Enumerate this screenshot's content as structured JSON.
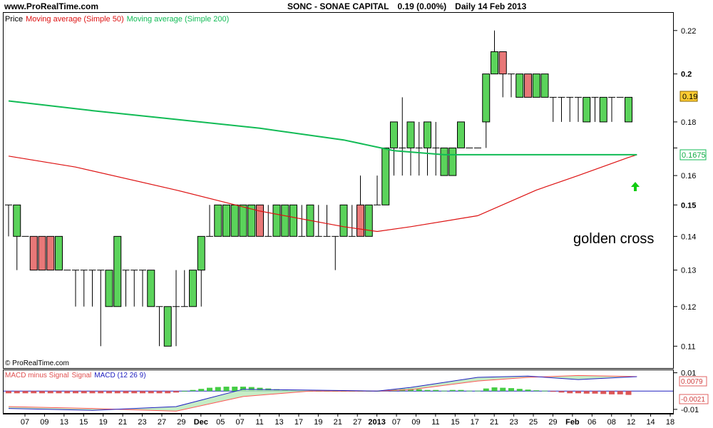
{
  "header": {
    "site": "www.ProRealTime.com",
    "symbol": "SONC - SONAE CAPITAL",
    "quote": "0.19 (0.00%)",
    "period": "Daily",
    "date": "14 Feb 2013"
  },
  "legend": {
    "price": "Price",
    "ma50": "Moving average (Simple 50)",
    "ma200": "Moving average (Simple 200)"
  },
  "copyright": "© ProRealTime.com",
  "annotation": {
    "text": "golden cross"
  },
  "last_price_tag": "0.19",
  "ma200_tag": "0.1675",
  "macd_legend": {
    "hist": "MACD minus Signal",
    "signal": "Signal",
    "macd": "MACD (12 26 9)"
  },
  "macd_tags": {
    "a": "0.0079",
    "b": "-0.0021"
  },
  "colors": {
    "up": "#5bd35b",
    "down": "#e87878",
    "ma50": "#dd1111",
    "ma200": "#11bb55",
    "macd": "#2020c0",
    "signal": "#ff5555",
    "arrow": "#11cc11"
  },
  "chart_data": [
    {
      "type": "candlestick",
      "title": "SONC - SONAE CAPITAL",
      "ylim": [
        0.105,
        0.228
      ],
      "yticks": [
        0.11,
        0.12,
        0.13,
        0.14,
        0.15,
        0.16,
        0.17,
        0.18,
        0.2,
        0.22
      ],
      "y_scale": "log",
      "ytick_labels": [
        "0.11",
        "0.12",
        "0.13",
        "0.14",
        "0.15",
        "0.16",
        "",
        "0.18",
        "0.2",
        "0.22"
      ],
      "x_labels": [
        "07",
        "09",
        "13",
        "15",
        "19",
        "21",
        "23",
        "27",
        "29",
        "Dec",
        "05",
        "07",
        "11",
        "13",
        "17",
        "19",
        "21",
        "27",
        "2013",
        "07",
        "09",
        "11",
        "15",
        "17",
        "21",
        "23",
        "25",
        "29",
        "Feb",
        "06",
        "08",
        "12",
        "14",
        "18"
      ],
      "candles": [
        {
          "o": 0.15,
          "h": 0.15,
          "l": 0.14,
          "c": 0.15
        },
        {
          "o": 0.14,
          "h": 0.15,
          "l": 0.13,
          "c": 0.15
        },
        {
          "o": 0.14,
          "h": 0.14,
          "l": 0.14,
          "c": 0.14
        },
        {
          "o": 0.14,
          "h": 0.14,
          "l": 0.13,
          "c": 0.13
        },
        {
          "o": 0.14,
          "h": 0.14,
          "l": 0.13,
          "c": 0.13
        },
        {
          "o": 0.14,
          "h": 0.14,
          "l": 0.13,
          "c": 0.13
        },
        {
          "o": 0.13,
          "h": 0.14,
          "l": 0.13,
          "c": 0.14
        },
        {
          "o": 0.13,
          "h": 0.13,
          "l": 0.13,
          "c": 0.13
        },
        {
          "o": 0.13,
          "h": 0.13,
          "l": 0.12,
          "c": 0.13
        },
        {
          "o": 0.13,
          "h": 0.13,
          "l": 0.12,
          "c": 0.13
        },
        {
          "o": 0.13,
          "h": 0.13,
          "l": 0.12,
          "c": 0.13
        },
        {
          "o": 0.13,
          "h": 0.13,
          "l": 0.11,
          "c": 0.13
        },
        {
          "o": 0.12,
          "h": 0.13,
          "l": 0.12,
          "c": 0.13
        },
        {
          "o": 0.12,
          "h": 0.14,
          "l": 0.12,
          "c": 0.14
        },
        {
          "o": 0.13,
          "h": 0.13,
          "l": 0.12,
          "c": 0.13
        },
        {
          "o": 0.13,
          "h": 0.13,
          "l": 0.12,
          "c": 0.13
        },
        {
          "o": 0.13,
          "h": 0.13,
          "l": 0.12,
          "c": 0.13
        },
        {
          "o": 0.12,
          "h": 0.13,
          "l": 0.12,
          "c": 0.13
        },
        {
          "o": 0.12,
          "h": 0.12,
          "l": 0.11,
          "c": 0.12
        },
        {
          "o": 0.11,
          "h": 0.12,
          "l": 0.11,
          "c": 0.12
        },
        {
          "o": 0.12,
          "h": 0.13,
          "l": 0.11,
          "c": 0.12
        },
        {
          "o": 0.12,
          "h": 0.13,
          "l": 0.12,
          "c": 0.12
        },
        {
          "o": 0.12,
          "h": 0.13,
          "l": 0.12,
          "c": 0.13
        },
        {
          "o": 0.13,
          "h": 0.14,
          "l": 0.12,
          "c": 0.14
        },
        {
          "o": 0.14,
          "h": 0.15,
          "l": 0.14,
          "c": 0.14
        },
        {
          "o": 0.14,
          "h": 0.15,
          "l": 0.14,
          "c": 0.15
        },
        {
          "o": 0.14,
          "h": 0.15,
          "l": 0.14,
          "c": 0.15
        },
        {
          "o": 0.14,
          "h": 0.15,
          "l": 0.14,
          "c": 0.15
        },
        {
          "o": 0.14,
          "h": 0.15,
          "l": 0.14,
          "c": 0.15
        },
        {
          "o": 0.14,
          "h": 0.15,
          "l": 0.14,
          "c": 0.15
        },
        {
          "o": 0.15,
          "h": 0.15,
          "l": 0.14,
          "c": 0.14
        },
        {
          "o": 0.14,
          "h": 0.15,
          "l": 0.14,
          "c": 0.14
        },
        {
          "o": 0.14,
          "h": 0.15,
          "l": 0.14,
          "c": 0.15
        },
        {
          "o": 0.14,
          "h": 0.15,
          "l": 0.14,
          "c": 0.15
        },
        {
          "o": 0.14,
          "h": 0.15,
          "l": 0.14,
          "c": 0.15
        },
        {
          "o": 0.14,
          "h": 0.15,
          "l": 0.14,
          "c": 0.14
        },
        {
          "o": 0.14,
          "h": 0.15,
          "l": 0.14,
          "c": 0.15
        },
        {
          "o": 0.14,
          "h": 0.15,
          "l": 0.14,
          "c": 0.14
        },
        {
          "o": 0.14,
          "h": 0.15,
          "l": 0.14,
          "c": 0.14
        },
        {
          "o": 0.14,
          "h": 0.14,
          "l": 0.13,
          "c": 0.14
        },
        {
          "o": 0.14,
          "h": 0.15,
          "l": 0.14,
          "c": 0.15
        },
        {
          "o": 0.14,
          "h": 0.15,
          "l": 0.14,
          "c": 0.14
        },
        {
          "o": 0.15,
          "h": 0.16,
          "l": 0.14,
          "c": 0.14
        },
        {
          "o": 0.14,
          "h": 0.15,
          "l": 0.14,
          "c": 0.15
        },
        {
          "o": 0.15,
          "h": 0.16,
          "l": 0.15,
          "c": 0.15
        },
        {
          "o": 0.15,
          "h": 0.17,
          "l": 0.15,
          "c": 0.17
        },
        {
          "o": 0.17,
          "h": 0.18,
          "l": 0.16,
          "c": 0.18
        },
        {
          "o": 0.17,
          "h": 0.19,
          "l": 0.16,
          "c": 0.17
        },
        {
          "o": 0.17,
          "h": 0.18,
          "l": 0.16,
          "c": 0.18
        },
        {
          "o": 0.17,
          "h": 0.18,
          "l": 0.16,
          "c": 0.17
        },
        {
          "o": 0.17,
          "h": 0.18,
          "l": 0.16,
          "c": 0.18
        },
        {
          "o": 0.17,
          "h": 0.18,
          "l": 0.16,
          "c": 0.17
        },
        {
          "o": 0.16,
          "h": 0.17,
          "l": 0.16,
          "c": 0.17
        },
        {
          "o": 0.16,
          "h": 0.17,
          "l": 0.16,
          "c": 0.17
        },
        {
          "o": 0.17,
          "h": 0.18,
          "l": 0.17,
          "c": 0.18
        },
        {
          "o": 0.17,
          "h": 0.17,
          "l": 0.17,
          "c": 0.17
        },
        {
          "o": 0.17,
          "h": 0.17,
          "l": 0.17,
          "c": 0.17
        },
        {
          "o": 0.18,
          "h": 0.2,
          "l": 0.17,
          "c": 0.2
        },
        {
          "o": 0.2,
          "h": 0.22,
          "l": 0.2,
          "c": 0.21
        },
        {
          "o": 0.21,
          "h": 0.21,
          "l": 0.19,
          "c": 0.2
        },
        {
          "o": 0.2,
          "h": 0.2,
          "l": 0.19,
          "c": 0.2
        },
        {
          "o": 0.19,
          "h": 0.2,
          "l": 0.19,
          "c": 0.2
        },
        {
          "o": 0.2,
          "h": 0.2,
          "l": 0.19,
          "c": 0.19
        },
        {
          "o": 0.19,
          "h": 0.2,
          "l": 0.19,
          "c": 0.2
        },
        {
          "o": 0.19,
          "h": 0.2,
          "l": 0.19,
          "c": 0.2
        },
        {
          "o": 0.19,
          "h": 0.19,
          "l": 0.18,
          "c": 0.19
        },
        {
          "o": 0.19,
          "h": 0.19,
          "l": 0.18,
          "c": 0.19
        },
        {
          "o": 0.19,
          "h": 0.19,
          "l": 0.18,
          "c": 0.19
        },
        {
          "o": 0.19,
          "h": 0.19,
          "l": 0.18,
          "c": 0.19
        },
        {
          "o": 0.18,
          "h": 0.19,
          "l": 0.18,
          "c": 0.19
        },
        {
          "o": 0.19,
          "h": 0.19,
          "l": 0.18,
          "c": 0.19
        },
        {
          "o": 0.18,
          "h": 0.19,
          "l": 0.18,
          "c": 0.19
        },
        {
          "o": 0.19,
          "h": 0.19,
          "l": 0.18,
          "c": 0.19
        },
        {
          "o": 0.19,
          "h": 0.19,
          "l": 0.19,
          "c": 0.19
        },
        {
          "o": 0.18,
          "h": 0.19,
          "l": 0.18,
          "c": 0.19
        }
      ],
      "series": [
        {
          "name": "Moving average (Simple 50)",
          "color": "#dd1111",
          "points": [
            [
              0,
              0.167
            ],
            [
              8,
              0.163
            ],
            [
              20,
              0.155
            ],
            [
              30,
              0.148
            ],
            [
              40,
              0.143
            ],
            [
              44,
              0.1415
            ],
            [
              48,
              0.143
            ],
            [
              56,
              0.1465
            ],
            [
              63,
              0.155
            ],
            [
              68,
              0.16
            ],
            [
              74,
              0.1665
            ],
            [
              75,
              0.1675
            ]
          ]
        },
        {
          "name": "Moving average (Simple 200)",
          "color": "#11bb55",
          "points": [
            [
              0,
              0.1885
            ],
            [
              10,
              0.1845
            ],
            [
              20,
              0.181
            ],
            [
              30,
              0.1775
            ],
            [
              40,
              0.173
            ],
            [
              46,
              0.169
            ],
            [
              52,
              0.1675
            ],
            [
              75,
              0.1675
            ]
          ]
        }
      ]
    },
    {
      "type": "macd",
      "name": "MACD (12 26 9)",
      "ylim": [
        -0.012,
        0.011
      ],
      "yticks": [
        -0.01,
        0.01
      ],
      "ytick_labels": [
        "-0.01",
        "0.01"
      ],
      "histogram": [
        -0.0012,
        -0.0012,
        -0.0012,
        -0.0012,
        -0.0012,
        -0.0012,
        -0.0012,
        -0.0012,
        -0.0012,
        -0.0012,
        -0.0012,
        -0.0012,
        -0.0012,
        -0.0012,
        -0.0012,
        -0.0012,
        -0.0012,
        -0.0012,
        -0.0012,
        -0.0012,
        -0.0008,
        0.0,
        0.0006,
        0.0012,
        0.0018,
        0.0022,
        0.0024,
        0.0024,
        0.0024,
        0.0022,
        0.0018,
        0.0014,
        0.001,
        0.0006,
        0.0004,
        0.0002,
        0.0,
        0.0,
        0.0,
        0.0,
        0.0,
        0.0,
        0.0,
        0.0,
        0.0,
        0.0004,
        0.001,
        0.0014,
        0.0014,
        0.001,
        0.0006,
        0.0006,
        0.0002,
        0.0006,
        0.0006,
        0.0002,
        0.0002,
        0.0014,
        0.002,
        0.0018,
        0.0016,
        0.0012,
        0.0008,
        0.0004,
        0.0002,
        -0.0004,
        -0.0008,
        -0.0012,
        -0.0012,
        -0.0014,
        -0.0014,
        -0.0016,
        -0.0018,
        -0.0018,
        -0.0021
      ],
      "macd": [
        [
          0,
          -0.0095
        ],
        [
          10,
          -0.0105
        ],
        [
          20,
          -0.0085
        ],
        [
          28,
          0.001
        ],
        [
          36,
          0.0005
        ],
        [
          44,
          0.0
        ],
        [
          48,
          0.002
        ],
        [
          56,
          0.0075
        ],
        [
          62,
          0.0082
        ],
        [
          68,
          0.0063
        ],
        [
          75,
          0.0079
        ]
      ],
      "signal": [
        [
          0,
          -0.0085
        ],
        [
          10,
          -0.0095
        ],
        [
          20,
          -0.011
        ],
        [
          28,
          -0.003
        ],
        [
          36,
          0.0
        ],
        [
          44,
          0.0
        ],
        [
          48,
          0.0008
        ],
        [
          56,
          0.0055
        ],
        [
          62,
          0.0075
        ],
        [
          68,
          0.0085
        ],
        [
          75,
          0.0079
        ]
      ]
    }
  ]
}
